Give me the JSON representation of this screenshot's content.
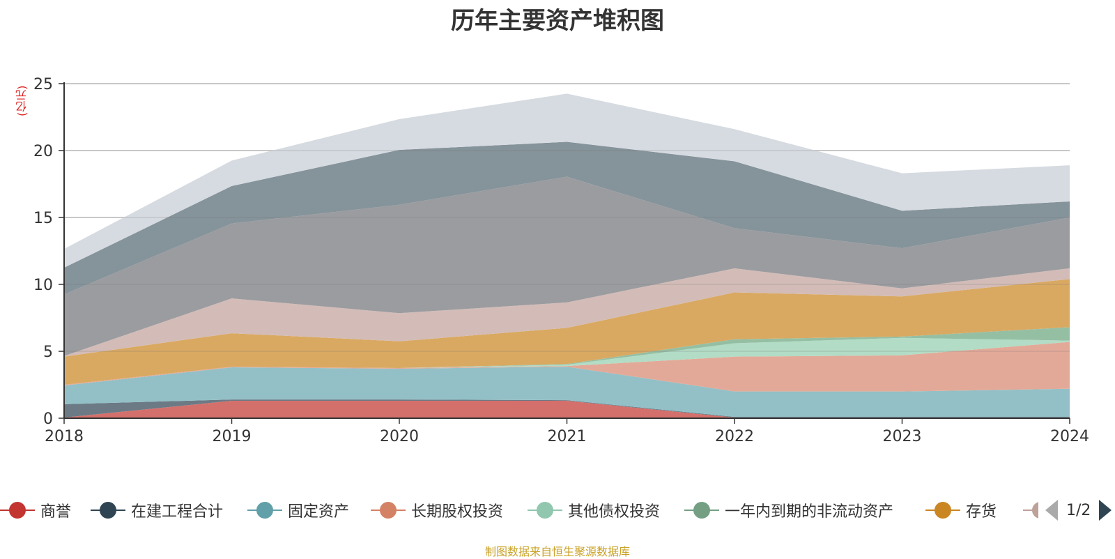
{
  "title": "历年主要资产堆积图",
  "unit_label": "(亿元)",
  "source_note": "制图数据来自恒生聚源数据库",
  "pager": {
    "text": "1/2"
  },
  "chart_data": {
    "type": "area",
    "stacked": true,
    "title": "历年主要资产堆积图",
    "ylabel": "(亿元)",
    "x": [
      "2018",
      "2019",
      "2020",
      "2021",
      "2022",
      "2023",
      "2024"
    ],
    "ylim": [
      0,
      25
    ],
    "yticks": [
      0,
      5,
      10,
      15,
      20,
      25
    ],
    "grid": true,
    "legend_position": "bottom",
    "series": [
      {
        "name": "商誉",
        "color": "#c23531",
        "fill": "#d4706c",
        "values": [
          0.05,
          1.3,
          1.3,
          1.3,
          0.05,
          0.05,
          0.05
        ]
      },
      {
        "name": "在建工程合计",
        "color": "#2f4554",
        "fill": "#6b7a85",
        "values": [
          1.0,
          0.1,
          0.1,
          0.05,
          0.05,
          0.05,
          0.05
        ]
      },
      {
        "name": "固定资产",
        "color": "#61a0a8",
        "fill": "#93c0c6",
        "values": [
          1.4,
          2.4,
          2.3,
          2.5,
          1.9,
          1.9,
          2.1
        ]
      },
      {
        "name": "长期股权投资",
        "color": "#d48265",
        "fill": "#e3a998",
        "values": [
          0.05,
          0.05,
          0.05,
          0.05,
          2.6,
          2.7,
          3.5
        ]
      },
      {
        "name": "其他债权投资",
        "color": "#91c7ae",
        "fill": "#b2dcc5",
        "values": [
          0.0,
          0.0,
          0.0,
          0.1,
          1.0,
          1.3,
          0.1
        ]
      },
      {
        "name": "一年内到期的非流动资产",
        "color": "#749f83",
        "fill": "#95bfa3",
        "values": [
          0.0,
          0.0,
          0.0,
          0.05,
          0.3,
          0.1,
          1.0
        ]
      },
      {
        "name": "存货",
        "color": "#ca8622",
        "fill": "#d9a962",
        "values": [
          2.1,
          2.5,
          2.0,
          2.7,
          3.5,
          3.0,
          3.6
        ]
      },
      {
        "name": "",
        "color": "#bda29a",
        "fill": "#d3bcb7",
        "values": [
          0.05,
          2.6,
          2.1,
          1.9,
          1.8,
          0.6,
          0.8
        ]
      },
      {
        "name": "",
        "color": "#6e7074",
        "fill": "#9b9ca0",
        "values": [
          4.6,
          5.6,
          8.1,
          9.4,
          3.0,
          3.0,
          3.8
        ]
      },
      {
        "name": "",
        "color": "#546570",
        "fill": "#85939a",
        "values": [
          2.0,
          2.8,
          4.1,
          2.6,
          5.0,
          2.8,
          1.2
        ]
      },
      {
        "name": "",
        "color": "#c4ccd3",
        "fill": "#d6dbe1",
        "values": [
          1.4,
          1.9,
          2.3,
          3.6,
          2.4,
          2.8,
          2.7
        ]
      }
    ]
  }
}
